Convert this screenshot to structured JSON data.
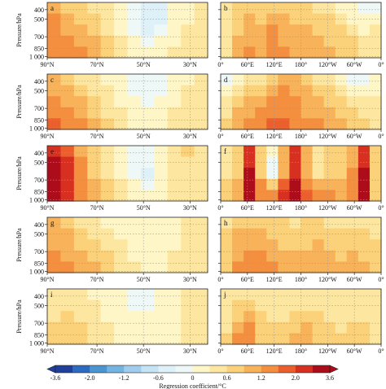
{
  "chart_data": [
    {
      "type": "heatmap",
      "figure_part": "panels",
      "panel_labels": [
        "a",
        "b",
        "c",
        "d",
        "e",
        "f",
        "g",
        "h",
        "i",
        "j"
      ],
      "ylabel": "Pressure/hPa",
      "yticks": [
        "400",
        "500",
        "700",
        "850",
        "1 000"
      ],
      "ylim_hPa": [
        1000,
        300
      ],
      "left_column_xticks": [
        "90°N",
        "70°N",
        "50°N",
        "30°N"
      ],
      "right_column_xticks": [
        "0°",
        "60°E",
        "120°E",
        "180°",
        "120°W",
        "60°W",
        "0°"
      ],
      "panels": [
        {
          "label": "a",
          "column": "latitude",
          "levels": [
            [
              1.0,
              0.8,
              0.6,
              0.4,
              0.3,
              0.1,
              -0.3,
              -0.5,
              -0.4,
              0.0,
              0.2,
              0.3
            ],
            [
              1.2,
              1.0,
              0.8,
              0.6,
              0.4,
              0.1,
              -0.3,
              -0.6,
              -0.5,
              0.0,
              0.2,
              0.3
            ],
            [
              1.2,
              1.1,
              1.0,
              0.8,
              0.5,
              0.2,
              -0.2,
              -0.4,
              -0.3,
              0.0,
              0.3,
              0.3
            ],
            [
              1.3,
              1.2,
              1.1,
              0.9,
              0.6,
              0.3,
              0.0,
              -0.2,
              0.0,
              0.2,
              0.3,
              0.4
            ],
            [
              1.4,
              1.3,
              1.2,
              1.0,
              0.7,
              0.4,
              0.1,
              0.0,
              0.1,
              0.3,
              0.4,
              0.4
            ]
          ]
        },
        {
          "label": "b",
          "column": "longitude",
          "levels": [
            [
              0.3,
              0.6,
              0.6,
              0.7,
              0.8,
              0.7,
              0.6,
              0.6,
              0.5,
              0.4,
              0.2,
              0.0,
              -0.2,
              -0.3
            ],
            [
              0.4,
              0.8,
              0.9,
              0.8,
              1.0,
              0.9,
              0.8,
              0.8,
              0.6,
              0.6,
              0.4,
              0.2,
              0.0,
              0.2
            ],
            [
              0.4,
              0.8,
              1.0,
              0.9,
              1.2,
              1.0,
              0.9,
              1.0,
              0.8,
              0.7,
              0.6,
              0.4,
              0.2,
              0.3
            ],
            [
              0.5,
              0.9,
              1.1,
              1.0,
              1.3,
              1.1,
              1.0,
              1.1,
              0.9,
              0.8,
              0.7,
              0.6,
              0.4,
              0.4
            ],
            [
              0.5,
              1.0,
              1.2,
              1.0,
              1.3,
              1.2,
              1.0,
              1.1,
              1.0,
              0.9,
              0.7,
              0.6,
              0.5,
              0.4
            ]
          ]
        },
        {
          "label": "c",
          "column": "latitude",
          "levels": [
            [
              0.9,
              0.8,
              0.5,
              0.3,
              0.2,
              0.0,
              -0.2,
              -0.3,
              -0.2,
              0.0,
              0.2,
              0.3
            ],
            [
              1.0,
              1.0,
              0.7,
              0.5,
              0.3,
              0.1,
              -0.2,
              -0.3,
              -0.2,
              0.1,
              0.3,
              0.4
            ],
            [
              1.2,
              1.1,
              0.9,
              0.6,
              0.4,
              0.2,
              0.0,
              -0.1,
              0.0,
              0.2,
              0.4,
              0.4
            ],
            [
              1.4,
              1.3,
              1.0,
              0.8,
              0.5,
              0.3,
              0.1,
              0.1,
              0.2,
              0.3,
              0.4,
              0.4
            ],
            [
              1.6,
              1.4,
              1.2,
              0.9,
              0.6,
              0.4,
              0.2,
              0.2,
              0.2,
              0.3,
              0.4,
              0.4
            ]
          ]
        },
        {
          "label": "d",
          "column": "longitude",
          "levels": [
            [
              -0.2,
              0.2,
              0.3,
              0.4,
              0.6,
              0.9,
              0.9,
              0.7,
              0.5,
              0.3,
              0.1,
              -0.3,
              -0.2,
              0.0
            ],
            [
              0.2,
              0.5,
              0.6,
              0.7,
              1.0,
              1.2,
              1.1,
              0.9,
              0.8,
              0.6,
              0.4,
              0.2,
              0.2,
              0.1
            ],
            [
              0.4,
              0.7,
              0.9,
              1.1,
              1.3,
              1.4,
              1.3,
              1.0,
              1.0,
              0.8,
              0.7,
              0.5,
              0.4,
              0.3
            ],
            [
              0.5,
              0.9,
              1.1,
              1.2,
              1.4,
              1.5,
              1.3,
              1.1,
              1.1,
              0.9,
              0.8,
              0.6,
              0.5,
              0.4
            ],
            [
              0.6,
              1.0,
              1.3,
              1.4,
              1.6,
              1.6,
              1.4,
              1.3,
              1.2,
              1.0,
              0.9,
              0.7,
              0.6,
              0.5
            ]
          ]
        },
        {
          "label": "e",
          "column": "latitude",
          "levels": [
            [
              2.4,
              1.6,
              1.0,
              0.6,
              0.4,
              0.1,
              -0.3,
              -0.3,
              0.1,
              0.5,
              0.6,
              0.4
            ],
            [
              2.8,
              2.0,
              1.2,
              0.7,
              0.5,
              0.2,
              -0.2,
              -0.3,
              0.1,
              0.4,
              0.5,
              0.4
            ],
            [
              3.0,
              2.2,
              1.3,
              0.8,
              0.5,
              0.2,
              -0.2,
              -0.4,
              0.0,
              0.3,
              0.5,
              0.4
            ],
            [
              3.1,
              2.4,
              1.4,
              0.9,
              0.6,
              0.3,
              0.0,
              -0.2,
              0.1,
              0.4,
              0.5,
              0.4
            ],
            [
              3.0,
              2.4,
              1.4,
              0.9,
              0.6,
              0.4,
              0.1,
              0.0,
              0.2,
              0.4,
              0.5,
              0.4
            ]
          ]
        },
        {
          "label": "f",
          "column": "longitude",
          "levels": [
            [
              0.4,
              0.6,
              2.2,
              0.6,
              0.0,
              1.0,
              2.0,
              1.0,
              0.5,
              0.7,
              0.6,
              1.0,
              2.2,
              0.6
            ],
            [
              0.5,
              0.7,
              2.6,
              0.6,
              -0.2,
              1.0,
              2.4,
              1.0,
              0.5,
              0.7,
              0.6,
              1.1,
              2.6,
              0.7
            ],
            [
              0.5,
              0.8,
              2.8,
              0.7,
              -0.2,
              1.1,
              2.6,
              1.1,
              0.5,
              0.7,
              0.7,
              1.2,
              2.8,
              0.7
            ],
            [
              0.6,
              1.0,
              3.0,
              1.2,
              0.8,
              1.6,
              2.8,
              1.4,
              0.9,
              1.0,
              0.9,
              1.3,
              3.0,
              0.8
            ],
            [
              0.6,
              1.1,
              2.9,
              1.4,
              1.2,
              2.4,
              2.8,
              1.6,
              1.2,
              1.2,
              1.0,
              1.3,
              2.8,
              0.8
            ]
          ]
        },
        {
          "label": "g",
          "column": "latitude",
          "levels": [
            [
              0.9,
              0.6,
              0.4,
              0.3,
              0.2,
              0.1,
              0.1,
              0.1,
              0.1,
              0.2,
              0.3,
              0.3
            ],
            [
              1.0,
              0.9,
              0.7,
              0.5,
              0.4,
              0.2,
              0.1,
              0.0,
              0.1,
              0.2,
              0.3,
              0.3
            ],
            [
              1.1,
              1.0,
              0.8,
              0.7,
              0.5,
              0.3,
              0.2,
              0.1,
              0.1,
              0.2,
              0.3,
              0.3
            ],
            [
              1.2,
              1.1,
              1.0,
              0.8,
              0.6,
              0.4,
              0.2,
              0.2,
              0.2,
              0.3,
              0.3,
              0.3
            ],
            [
              1.3,
              1.2,
              1.1,
              0.9,
              0.7,
              0.5,
              0.3,
              0.2,
              0.2,
              0.3,
              0.3,
              0.3
            ]
          ]
        },
        {
          "label": "h",
          "column": "longitude",
          "levels": [
            [
              0.4,
              0.7,
              0.8,
              0.7,
              0.6,
              0.6,
              0.5,
              0.6,
              0.6,
              0.5,
              0.4,
              0.5,
              0.5,
              0.4
            ],
            [
              0.6,
              0.9,
              1.0,
              0.9,
              0.8,
              0.7,
              0.6,
              0.7,
              0.8,
              0.7,
              0.6,
              0.7,
              0.6,
              0.5
            ],
            [
              0.7,
              1.0,
              1.1,
              1.0,
              0.9,
              0.8,
              0.7,
              0.8,
              0.9,
              0.8,
              0.7,
              0.8,
              0.7,
              0.6
            ],
            [
              0.7,
              1.1,
              1.2,
              1.2,
              1.1,
              1.0,
              0.9,
              1.0,
              1.0,
              0.9,
              0.8,
              0.9,
              0.8,
              0.7
            ],
            [
              0.8,
              1.2,
              1.3,
              1.3,
              1.2,
              1.1,
              1.0,
              1.1,
              1.1,
              1.0,
              0.9,
              1.0,
              0.9,
              0.7
            ]
          ]
        },
        {
          "label": "i",
          "column": "latitude",
          "levels": [
            [
              0.3,
              0.4,
              0.3,
              0.2,
              0.1,
              0.0,
              -0.1,
              -0.1,
              0.0,
              0.2,
              0.3,
              0.3
            ],
            [
              0.4,
              0.5,
              0.4,
              0.3,
              0.2,
              0.0,
              -0.1,
              -0.1,
              0.0,
              0.2,
              0.3,
              0.3
            ],
            [
              0.5,
              0.6,
              0.5,
              0.4,
              0.2,
              0.1,
              0.0,
              0.0,
              0.1,
              0.2,
              0.3,
              0.3
            ],
            [
              0.6,
              0.7,
              0.6,
              0.4,
              0.3,
              0.1,
              0.0,
              0.0,
              0.1,
              0.2,
              0.3,
              0.3
            ],
            [
              0.7,
              0.8,
              0.6,
              0.5,
              0.3,
              0.2,
              0.1,
              0.0,
              0.1,
              0.2,
              0.3,
              0.3
            ]
          ]
        },
        {
          "label": "j",
          "column": "longitude",
          "levels": [
            [
              0.3,
              0.4,
              0.5,
              0.4,
              0.3,
              0.3,
              0.3,
              0.4,
              0.4,
              0.3,
              0.3,
              0.3,
              0.3,
              0.3
            ],
            [
              0.3,
              0.6,
              0.8,
              0.5,
              0.4,
              0.4,
              0.4,
              0.5,
              0.5,
              0.4,
              0.3,
              0.4,
              0.4,
              0.3
            ],
            [
              0.4,
              0.8,
              1.0,
              0.6,
              0.5,
              0.5,
              0.6,
              0.7,
              0.6,
              0.5,
              0.4,
              0.5,
              0.5,
              0.4
            ],
            [
              0.5,
              1.0,
              1.2,
              0.7,
              0.6,
              0.7,
              0.8,
              0.9,
              0.7,
              0.6,
              0.5,
              0.6,
              0.6,
              0.4
            ],
            [
              0.6,
              1.2,
              1.4,
              0.8,
              0.7,
              0.8,
              0.9,
              1.0,
              0.8,
              0.7,
              0.6,
              0.7,
              0.7,
              0.5
            ]
          ]
        }
      ]
    },
    {
      "type": "colorbar",
      "figure_part": "legend",
      "title": "Regression coefficient/°C",
      "tick_labels": [
        "-3.6",
        "-2.0",
        "-1.2",
        "-0.6",
        "0",
        "0.6",
        "1.2",
        "2.0",
        "3.6"
      ],
      "boundaries": [
        -3.6,
        -2.8,
        -2.0,
        -1.6,
        -1.2,
        -0.9,
        -0.6,
        -0.3,
        0,
        0.3,
        0.6,
        0.9,
        1.2,
        1.6,
        2.0,
        2.8,
        3.6
      ],
      "colors": [
        "#1f3f9b",
        "#2d6ac1",
        "#4c95d3",
        "#74b4e2",
        "#a0cdee",
        "#c4e3f5",
        "#dff1f8",
        "#eef8f7",
        "#fff6c8",
        "#fde7a0",
        "#fbd17a",
        "#f7b25a",
        "#f38f3e",
        "#ea5f2c",
        "#d73020",
        "#ad0c1a"
      ]
    }
  ]
}
